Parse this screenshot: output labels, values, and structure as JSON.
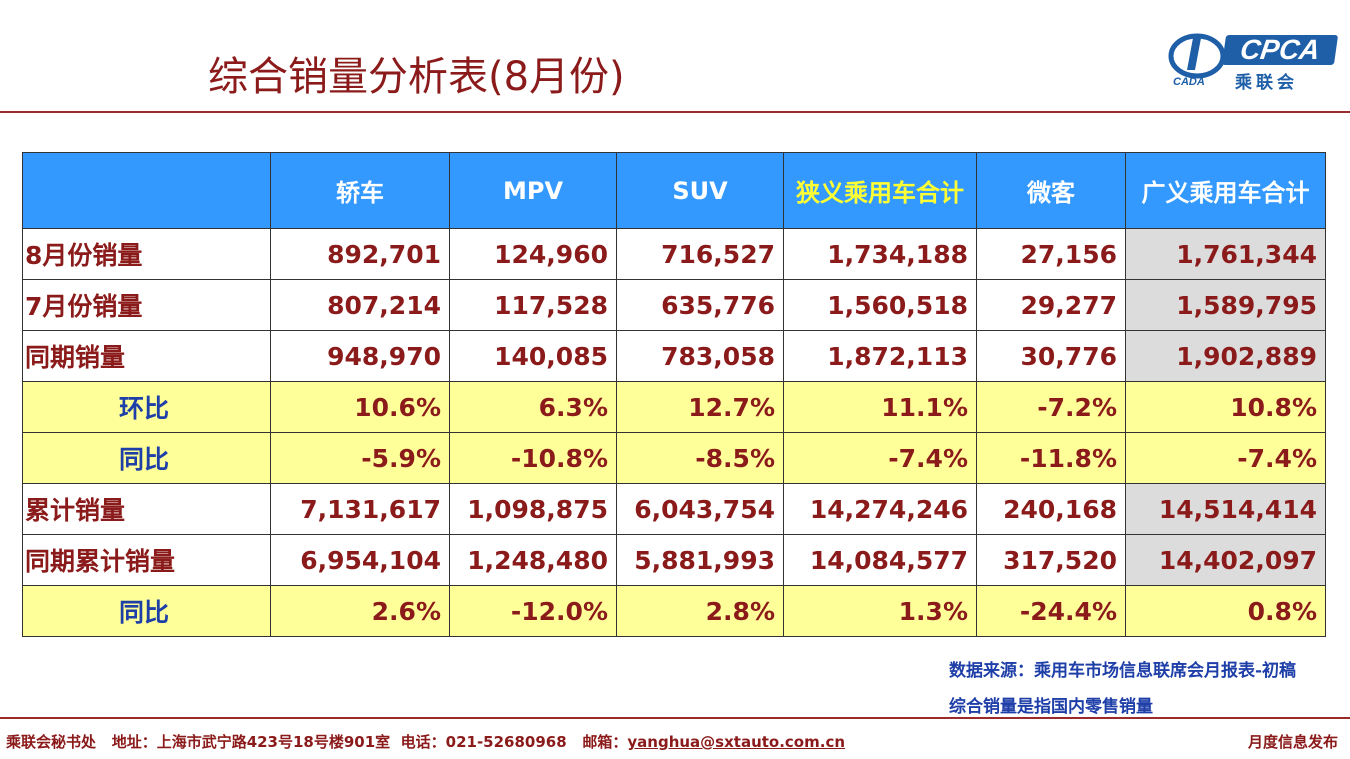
{
  "title": "综合销量分析表(8月份)",
  "logo": {
    "brand": "CPCA",
    "name": "乘联会",
    "small": "CADA"
  },
  "table": {
    "headers": [
      "",
      "轿车",
      "MPV",
      "SUV",
      "狭义乘用车合计",
      "微客",
      "广义乘用车合计"
    ],
    "rows": [
      {
        "label": "8月份销量",
        "values": [
          "892,701",
          "124,960",
          "716,527",
          "1,734,188",
          "27,156",
          "1,761,344"
        ]
      },
      {
        "label": "7月份销量",
        "values": [
          "807,214",
          "117,528",
          "635,776",
          "1,560,518",
          "29,277",
          "1,589,795"
        ]
      },
      {
        "label": "同期销量",
        "values": [
          "948,970",
          "140,085",
          "783,058",
          "1,872,113",
          "30,776",
          "1,902,889"
        ]
      },
      {
        "label": "环比",
        "values": [
          "10.6%",
          "6.3%",
          "12.7%",
          "11.1%",
          "-7.2%",
          "10.8%"
        ]
      },
      {
        "label": "同比",
        "values": [
          "-5.9%",
          "-10.8%",
          "-8.5%",
          "-7.4%",
          "-11.8%",
          "-7.4%"
        ]
      },
      {
        "label": "累计销量",
        "values": [
          "7,131,617",
          "1,098,875",
          "6,043,754",
          "14,274,246",
          "240,168",
          "14,514,414"
        ]
      },
      {
        "label": "同期累计销量",
        "values": [
          "6,954,104",
          "1,248,480",
          "5,881,993",
          "14,084,577",
          "317,520",
          "14,402,097"
        ]
      },
      {
        "label": "同比",
        "values": [
          "2.6%",
          "-12.0%",
          "2.8%",
          "1.3%",
          "-24.4%",
          "0.8%"
        ]
      }
    ]
  },
  "notes": {
    "source": "数据来源：乘用车市场信息联席会月报表-初稿",
    "definition": "综合销量是指国内零售销量"
  },
  "footer": {
    "org": "乘联会秘书处",
    "address": "地址：上海市武宁路423号18号楼901室",
    "phone": "电话：021-52680968",
    "email_label": "邮箱：",
    "email": "yanghua@sxtauto.com.cn",
    "right": "月度信息发布"
  },
  "colors": {
    "header_bg": "#3399ff",
    "ratio_bg": "#ffff99",
    "title": "#8b1a1a",
    "total_bg": "#dcdcdc"
  }
}
